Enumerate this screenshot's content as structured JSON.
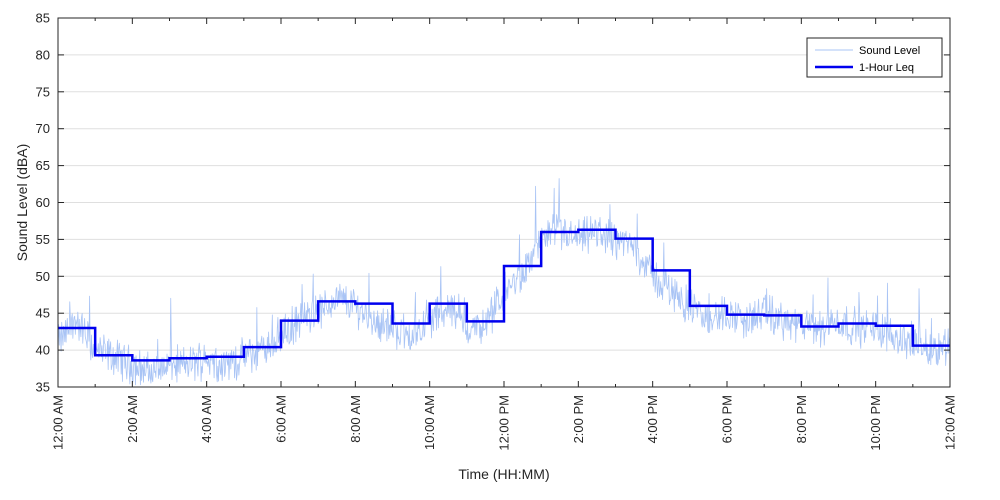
{
  "chart_data": {
    "type": "line",
    "xlabel": "Time (HH:MM)",
    "ylabel": "Sound Level (dBA)",
    "xlim": [
      0,
      24
    ],
    "ylim": [
      35,
      85
    ],
    "x_ticks": [
      0,
      2,
      4,
      6,
      8,
      10,
      12,
      14,
      16,
      18,
      20,
      22,
      24
    ],
    "x_tick_labels": [
      "12:00 AM",
      "2:00 AM",
      "4:00 AM",
      "6:00 AM",
      "8:00 AM",
      "10:00 AM",
      "12:00 PM",
      "2:00 PM",
      "4:00 PM",
      "6:00 PM",
      "8:00 PM",
      "10:00 PM",
      "12:00 AM"
    ],
    "y_ticks": [
      35,
      40,
      45,
      50,
      55,
      60,
      65,
      70,
      75,
      80,
      85
    ],
    "grid": true,
    "legend_position": "top-right",
    "series": [
      {
        "name": "Sound Level",
        "color": "#a9c4f5",
        "style": "thin noisy line",
        "x": [
          0.0,
          0.5,
          1.0,
          1.5,
          2.0,
          2.5,
          3.0,
          3.5,
          4.0,
          4.5,
          5.0,
          5.5,
          6.0,
          6.5,
          7.0,
          7.5,
          8.0,
          8.5,
          9.0,
          9.5,
          10.0,
          10.5,
          11.0,
          11.5,
          12.0,
          12.5,
          13.0,
          13.5,
          14.0,
          14.5,
          15.0,
          15.5,
          16.0,
          16.5,
          17.0,
          17.5,
          18.0,
          18.5,
          19.0,
          19.5,
          20.0,
          20.5,
          21.0,
          21.5,
          22.0,
          22.5,
          23.0,
          23.5,
          24.0
        ],
        "values": [
          41,
          44,
          40,
          39,
          38,
          37,
          38,
          38,
          39,
          38,
          39,
          40,
          42,
          44,
          45,
          47,
          46,
          44,
          43,
          42,
          44,
          46,
          43,
          43,
          48,
          50,
          55,
          56,
          55,
          56,
          55,
          54,
          50,
          48,
          46,
          44,
          45,
          44,
          45,
          44,
          43,
          43,
          44,
          43,
          43,
          42,
          41,
          40,
          41
        ]
      },
      {
        "name": "1-Hour Leq",
        "color": "#0000ee",
        "style": "thick step line",
        "hour_start": [
          0,
          1,
          2,
          3,
          4,
          5,
          6,
          7,
          8,
          9,
          10,
          11,
          12,
          13,
          14,
          15,
          16,
          17,
          18,
          19,
          20,
          21,
          22,
          23
        ],
        "values": [
          43.0,
          39.3,
          38.6,
          38.9,
          39.1,
          40.4,
          44.0,
          46.6,
          46.3,
          43.6,
          46.3,
          43.9,
          51.4,
          56.0,
          56.3,
          55.1,
          50.8,
          46.0,
          44.8,
          44.7,
          43.2,
          43.6,
          43.3,
          40.6
        ]
      }
    ]
  }
}
